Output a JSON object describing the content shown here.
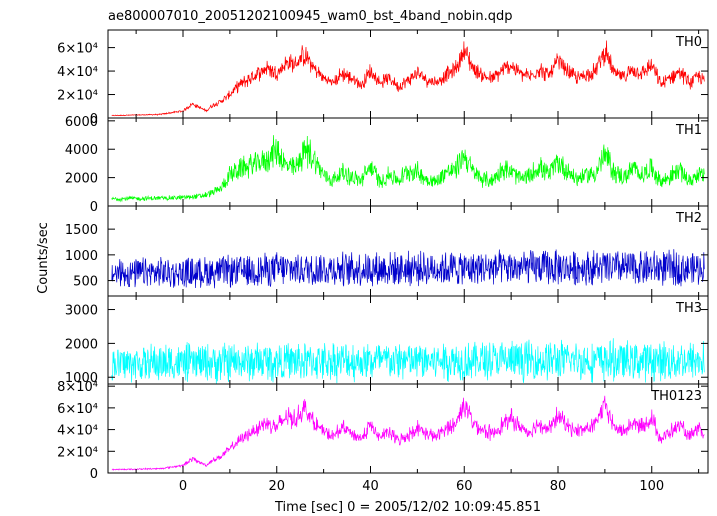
{
  "chart_data": {
    "type": "line",
    "title": "ae800007010_20051202100945_wam0_bst_4band_nobin.qdp",
    "xlabel": "Time [sec] 0 = 2005/12/02 10:09:45.851",
    "ylabel": "Counts/sec",
    "xlim": [
      -16,
      112
    ],
    "x_ticks": [
      0,
      20,
      40,
      60,
      80,
      100
    ],
    "grid": false,
    "panels": [
      {
        "name": "TH0",
        "color": "#ff0000",
        "ylim": [
          0,
          75000
        ],
        "y_ticks": [
          {
            "v": 0,
            "label": "0"
          },
          {
            "v": 20000,
            "label": "2×10⁴"
          },
          {
            "v": 40000,
            "label": "4×10⁴"
          },
          {
            "v": 60000,
            "label": "6×10⁴"
          }
        ],
        "envelope": {
          "x": [
            -16,
            -5,
            0,
            2,
            4,
            5,
            6,
            8,
            10,
            12,
            14,
            16,
            18,
            20,
            22,
            24,
            26,
            28,
            30,
            32,
            34,
            36,
            38,
            40,
            42,
            44,
            46,
            48,
            50,
            52,
            54,
            56,
            58,
            60,
            62,
            64,
            66,
            68,
            70,
            72,
            74,
            76,
            78,
            80,
            82,
            84,
            86,
            88,
            90,
            92,
            94,
            96,
            98,
            100,
            102,
            104,
            106,
            108,
            110,
            112
          ],
          "y": [
            2000,
            3000,
            6000,
            12000,
            8000,
            6000,
            10000,
            14000,
            20000,
            28000,
            33000,
            38000,
            43000,
            38000,
            47000,
            46000,
            54000,
            42000,
            34000,
            30000,
            38000,
            34000,
            28000,
            40000,
            30000,
            34000,
            27000,
            32000,
            38000,
            33000,
            30000,
            37000,
            40000,
            58000,
            42000,
            36000,
            33000,
            40000,
            45000,
            38000,
            35000,
            42000,
            36000,
            48000,
            40000,
            34000,
            37000,
            40000,
            58000,
            38000,
            35000,
            42000,
            38000,
            45000,
            28000,
            35000,
            40000,
            30000,
            36000,
            28000
          ]
        },
        "noise": [
          0.06,
          0.22
        ]
      },
      {
        "name": "TH1",
        "color": "#00ff00",
        "ylim": [
          0,
          6200
        ],
        "y_ticks": [
          {
            "v": 0,
            "label": "0"
          },
          {
            "v": 2000,
            "label": "2000"
          },
          {
            "v": 4000,
            "label": "4000"
          },
          {
            "v": 6000,
            "label": "6000"
          }
        ],
        "envelope": {
          "x": [
            -16,
            -5,
            0,
            4,
            6,
            8,
            10,
            12,
            14,
            16,
            18,
            20,
            22,
            24,
            26,
            28,
            30,
            32,
            34,
            36,
            38,
            40,
            42,
            44,
            46,
            48,
            50,
            52,
            54,
            56,
            58,
            60,
            62,
            64,
            66,
            68,
            70,
            72,
            74,
            76,
            78,
            80,
            82,
            84,
            86,
            88,
            90,
            92,
            94,
            96,
            98,
            100,
            102,
            104,
            106,
            108,
            110,
            112
          ],
          "y": [
            500,
            550,
            600,
            700,
            900,
            1200,
            2200,
            2600,
            2800,
            3000,
            3300,
            4000,
            2800,
            2600,
            4000,
            3300,
            2200,
            1800,
            2400,
            2000,
            1800,
            2800,
            1700,
            2200,
            1800,
            2500,
            2400,
            1900,
            1700,
            2400,
            2500,
            3600,
            2300,
            1900,
            1800,
            2600,
            2400,
            1900,
            2100,
            2800,
            2200,
            3100,
            2500,
            1900,
            2200,
            2300,
            3600,
            2400,
            2000,
            2600,
            2200,
            2700,
            1700,
            2100,
            2600,
            1700,
            2300,
            1800
          ]
        },
        "noise": [
          0.18,
          0.35
        ]
      },
      {
        "name": "TH2",
        "color": "#0000cc",
        "ylim": [
          200,
          1950
        ],
        "y_ticks": [
          {
            "v": 500,
            "label": "500"
          },
          {
            "v": 1000,
            "label": "1000"
          },
          {
            "v": 1500,
            "label": "1500"
          }
        ],
        "envelope": {
          "x": [
            -16,
            0,
            10,
            20,
            40,
            60,
            80,
            100,
            112
          ],
          "y": [
            640,
            650,
            680,
            720,
            730,
            740,
            750,
            745,
            740
          ]
        },
        "noise": [
          0.35,
          0.5
        ]
      },
      {
        "name": "TH3",
        "color": "#00ffff",
        "ylim": [
          800,
          3400
        ],
        "y_ticks": [
          {
            "v": 1000,
            "label": "1000"
          },
          {
            "v": 2000,
            "label": "2000"
          },
          {
            "v": 3000,
            "label": "3000"
          }
        ],
        "envelope": {
          "x": [
            -16,
            0,
            10,
            20,
            40,
            60,
            80,
            100,
            112
          ],
          "y": [
            1400,
            1420,
            1440,
            1460,
            1480,
            1490,
            1500,
            1490,
            1480
          ]
        },
        "noise": [
          0.25,
          0.45
        ]
      },
      {
        "name": "TH0123",
        "color": "#ff00ff",
        "ylim": [
          0,
          82000
        ],
        "y_ticks": [
          {
            "v": 0,
            "label": "0"
          },
          {
            "v": 20000,
            "label": "2×10⁴"
          },
          {
            "v": 40000,
            "label": "4×10⁴"
          },
          {
            "v": 60000,
            "label": "6×10⁴"
          },
          {
            "v": 80000,
            "label": "8×10⁴"
          }
        ],
        "envelope": {
          "x": [
            -16,
            -5,
            0,
            2,
            4,
            5,
            6,
            8,
            10,
            12,
            14,
            16,
            18,
            20,
            22,
            24,
            26,
            28,
            30,
            32,
            34,
            36,
            38,
            40,
            42,
            44,
            46,
            48,
            50,
            52,
            54,
            56,
            58,
            60,
            62,
            64,
            66,
            68,
            70,
            72,
            74,
            76,
            78,
            80,
            82,
            84,
            86,
            88,
            90,
            92,
            94,
            96,
            98,
            100,
            102,
            104,
            106,
            108,
            110,
            112
          ],
          "y": [
            3000,
            4000,
            7000,
            13000,
            9000,
            7000,
            11000,
            15000,
            22000,
            30000,
            36000,
            42000,
            47000,
            42000,
            52000,
            50000,
            60000,
            46000,
            38000,
            33000,
            42000,
            37000,
            31000,
            44000,
            33000,
            37000,
            30000,
            35000,
            42000,
            36000,
            33000,
            41000,
            44000,
            64000,
            46000,
            40000,
            36000,
            44000,
            50000,
            42000,
            38000,
            46000,
            40000,
            53000,
            44000,
            38000,
            41000,
            44000,
            64000,
            42000,
            38000,
            46000,
            42000,
            50000,
            31000,
            38000,
            44000,
            33000,
            40000,
            31000
          ]
        },
        "noise": [
          0.06,
          0.22
        ]
      }
    ]
  }
}
